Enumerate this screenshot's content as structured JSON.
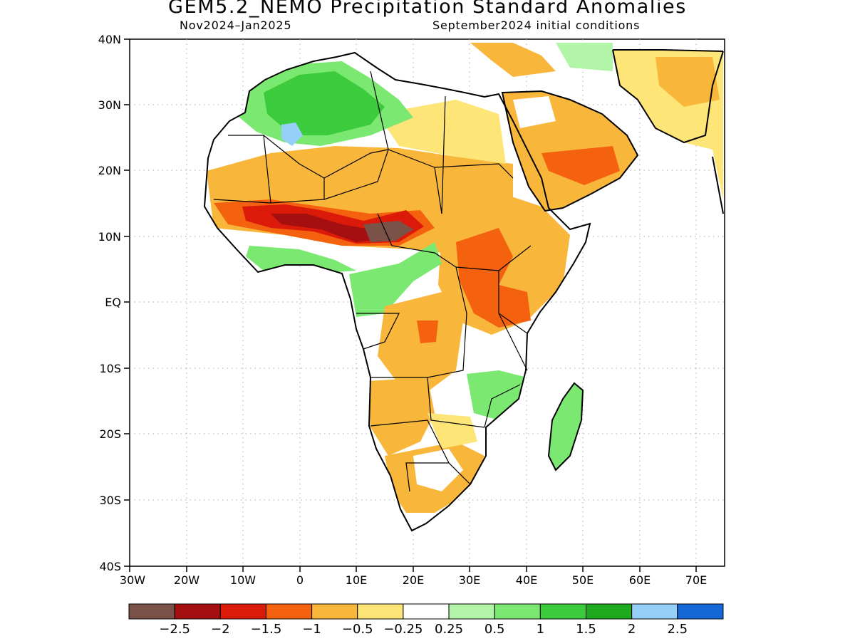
{
  "title": "GEM5.2_NEMO Precipitation Standard Anomalies",
  "subtitle_left": "Nov2024–Jan2025",
  "subtitle_right": "September2024 initial conditions",
  "lat_ticks": [
    "40N",
    "30N",
    "20N",
    "10N",
    "EQ",
    "10S",
    "20S",
    "30S",
    "40S"
  ],
  "lon_ticks": [
    "30W",
    "20W",
    "10W",
    "0",
    "10E",
    "20E",
    "30E",
    "40E",
    "50E",
    "60E",
    "70E"
  ],
  "map_extent": {
    "lon_min": -30,
    "lon_max": 75,
    "lat_min": -40,
    "lat_max": 40
  },
  "colorbar": {
    "colors": [
      "#7a5248",
      "#a50f0f",
      "#db1a0a",
      "#f5620f",
      "#f8b73b",
      "#fde577",
      "#ffffff",
      "#b3f5a8",
      "#7be872",
      "#3ccb3c",
      "#1ea91e",
      "#96cff8",
      "#1568d6"
    ],
    "labels": [
      "−2.5",
      "−2",
      "−1.5",
      "−1",
      "−0.5",
      "−0.25",
      "0.25",
      "0.5",
      "1",
      "1.5",
      "2",
      "2.5"
    ]
  }
}
